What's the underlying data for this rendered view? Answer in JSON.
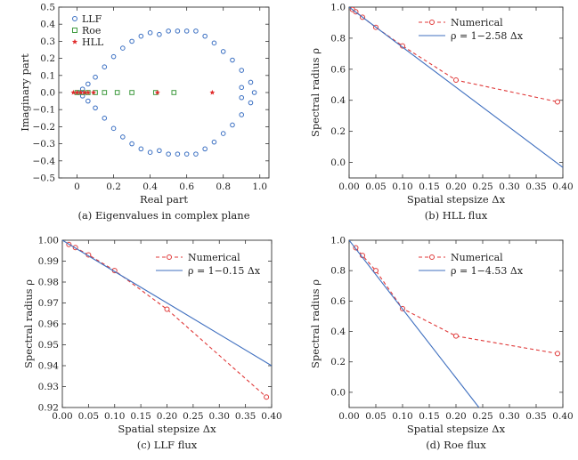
{
  "chart_data": [
    {
      "type": "scatter",
      "caption": "(a) Eigenvalues in complex plane",
      "xlabel": "Real part",
      "ylabel": "Imaginary part",
      "xlim": [
        -0.1,
        1.05
      ],
      "ylim": [
        -0.5,
        0.5
      ],
      "xticks": [
        0.0,
        0.2,
        0.4,
        0.6,
        0.8,
        1.0
      ],
      "xtick_labels": [
        "0",
        "0.2",
        "0.4",
        "0.6",
        "0.8",
        "1.0"
      ],
      "yticks": [
        -0.5,
        -0.4,
        -0.3,
        -0.2,
        -0.1,
        0.0,
        0.1,
        0.2,
        0.3,
        0.4,
        0.5
      ],
      "ytick_labels": [
        "−0.5",
        "−0.4",
        "−0.3",
        "−0.2",
        "−0.1",
        "0.0",
        "0.1",
        "0.2",
        "0.3",
        "0.4",
        "0.5"
      ],
      "legend_position": "top-left",
      "series": [
        {
          "name": "LLF",
          "marker": "open-circle",
          "color": "#3a6fc2",
          "x": [
            0.4,
            0.45,
            0.5,
            0.55,
            0.6,
            0.65,
            0.7,
            0.75,
            0.8,
            0.85,
            0.9,
            0.95,
            0.97,
            0.9,
            0.35,
            0.3,
            0.25,
            0.2,
            0.15,
            0.1,
            0.06,
            0.03,
            0.01
          ],
          "y": [
            0.35,
            0.34,
            0.36,
            0.36,
            0.36,
            0.36,
            0.33,
            0.29,
            0.24,
            0.19,
            0.13,
            0.06,
            0.0,
            0.03,
            0.33,
            0.3,
            0.26,
            0.21,
            0.15,
            0.09,
            0.05,
            0.02,
            0.0
          ]
        },
        {
          "name": "Roe",
          "marker": "open-square",
          "color": "#3f9a3f",
          "x": [
            0.0,
            0.03,
            0.06,
            0.1,
            0.15,
            0.22,
            0.3,
            0.43,
            0.53
          ],
          "y": [
            0,
            0,
            0,
            0,
            0,
            0,
            0,
            0,
            0
          ]
        },
        {
          "name": "HLL",
          "marker": "filled-star",
          "color": "#e02b2b",
          "x": [
            -0.02,
            0.0,
            0.02,
            0.04,
            0.06,
            0.09,
            0.44,
            0.74
          ],
          "y": [
            0,
            0,
            0,
            0,
            0,
            0,
            0,
            0
          ]
        }
      ]
    },
    {
      "type": "line",
      "caption": "(b) HLL flux",
      "xlabel": "Spatial stepsize Δx",
      "ylabel": "Spectral radius ρ",
      "xlim": [
        0.0,
        0.4
      ],
      "ylim": [
        -0.1,
        1.0
      ],
      "xticks": [
        0.0,
        0.05,
        0.1,
        0.15,
        0.2,
        0.25,
        0.3,
        0.35,
        0.4
      ],
      "xtick_labels": [
        "0.00",
        "0.05",
        "0.10",
        "0.15",
        "0.20",
        "0.25",
        "0.30",
        "0.35",
        "0.40"
      ],
      "yticks": [
        0.0,
        0.2,
        0.4,
        0.6,
        0.8,
        1.0
      ],
      "ytick_labels": [
        "0.0",
        "0.2",
        "0.4",
        "0.6",
        "0.8",
        "1.0"
      ],
      "legend_position": "top-right",
      "series": [
        {
          "name": "Numerical",
          "style": "dashed-open-circle",
          "color": "#e03a3a",
          "x": [
            0.00625,
            0.0125,
            0.025,
            0.05,
            0.1,
            0.2,
            0.39
          ],
          "y": [
            0.985,
            0.97,
            0.935,
            0.87,
            0.75,
            0.53,
            0.39
          ]
        },
        {
          "name": "ρ = 1−2.58 Δx",
          "style": "solid",
          "color": "#3f6fbf",
          "x": [
            0.0,
            0.4
          ],
          "y": [
            1.0,
            -0.032
          ]
        }
      ]
    },
    {
      "type": "line",
      "caption": "(c) LLF flux",
      "xlabel": "Spatial stepsize Δx",
      "ylabel": "Spectral radius ρ",
      "xlim": [
        0.0,
        0.4
      ],
      "ylim": [
        0.92,
        1.0
      ],
      "xticks": [
        0.0,
        0.05,
        0.1,
        0.15,
        0.2,
        0.25,
        0.3,
        0.35,
        0.4
      ],
      "xtick_labels": [
        "0.00",
        "0.05",
        "0.10",
        "0.15",
        "0.20",
        "0.25",
        "0.30",
        "0.35",
        "0.40"
      ],
      "yticks": [
        0.92,
        0.93,
        0.94,
        0.95,
        0.96,
        0.97,
        0.98,
        0.99,
        1.0
      ],
      "ytick_labels": [
        "0.92",
        "0.93",
        "0.94",
        "0.95",
        "0.96",
        "0.97",
        "0.98",
        "0.99",
        "1.00"
      ],
      "legend_position": "top-right",
      "series": [
        {
          "name": "Numerical",
          "style": "dashed-open-circle",
          "color": "#e03a3a",
          "x": [
            0.0125,
            0.025,
            0.05,
            0.1,
            0.2,
            0.39
          ],
          "y": [
            0.998,
            0.9965,
            0.993,
            0.9855,
            0.967,
            0.925
          ]
        },
        {
          "name": "ρ = 1−0.15 Δx",
          "style": "solid",
          "color": "#3f6fbf",
          "x": [
            0.0,
            0.4
          ],
          "y": [
            1.0,
            0.94
          ]
        }
      ]
    },
    {
      "type": "line",
      "caption": "(d) Roe flux",
      "xlabel": "Spatial stepsize Δx",
      "ylabel": "Spectral radius ρ",
      "xlim": [
        0.0,
        0.4
      ],
      "ylim": [
        -0.1,
        1.0
      ],
      "xticks": [
        0.0,
        0.05,
        0.1,
        0.15,
        0.2,
        0.25,
        0.3,
        0.35,
        0.4
      ],
      "xtick_labels": [
        "0.00",
        "0.05",
        "0.10",
        "0.15",
        "0.20",
        "0.25",
        "0.30",
        "0.35",
        "0.40"
      ],
      "yticks": [
        0.0,
        0.2,
        0.4,
        0.6,
        0.8,
        1.0
      ],
      "ytick_labels": [
        "0.0",
        "0.2",
        "0.4",
        "0.6",
        "0.8",
        "1.0"
      ],
      "legend_position": "top-right",
      "series": [
        {
          "name": "Numerical",
          "style": "dashed-open-circle",
          "color": "#e03a3a",
          "x": [
            0.0125,
            0.025,
            0.05,
            0.1,
            0.2,
            0.39
          ],
          "y": [
            0.95,
            0.9,
            0.8,
            0.55,
            0.37,
            0.255
          ]
        },
        {
          "name": "ρ = 1−4.53 Δx",
          "style": "solid",
          "color": "#3f6fbf",
          "x": [
            0.0,
            0.243
          ],
          "y": [
            1.0,
            -0.1
          ]
        }
      ]
    }
  ]
}
